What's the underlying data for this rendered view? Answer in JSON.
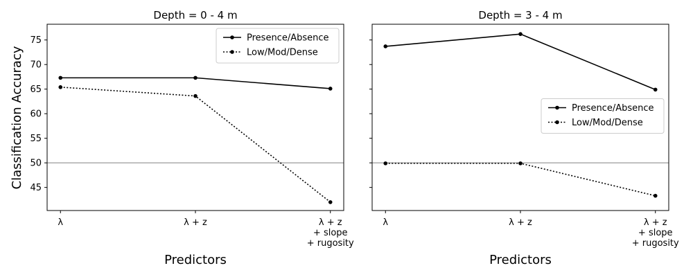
{
  "figure": {
    "ylabel": "Classification Accuracy"
  },
  "chart_data": [
    {
      "type": "line",
      "title": "Depth = 0 - 4 m",
      "xlabel": "Predictors",
      "ylabel": "Classification Accuracy",
      "categories": [
        "λ",
        "λ + z",
        "λ + z\n+ slope\n+ rugosity"
      ],
      "ylim": [
        40.3,
        78.2
      ],
      "yticks": [
        45,
        50,
        55,
        60,
        65,
        70,
        75
      ],
      "reference_line": 50,
      "legend": "top-right",
      "series": [
        {
          "name": "Presence/Absence",
          "style": "solid",
          "values": [
            67.3,
            67.3,
            65.1
          ]
        },
        {
          "name": "Low/Mod/Dense",
          "style": "dotted",
          "values": [
            65.4,
            63.6,
            42.0
          ]
        }
      ]
    },
    {
      "type": "line",
      "title": "Depth = 3 - 4 m",
      "xlabel": "Predictors",
      "ylabel": "",
      "categories": [
        "λ",
        "λ + z",
        "λ + z\n+ slope\n+ rugosity"
      ],
      "ylim": [
        40.3,
        78.2
      ],
      "yticks": [
        45,
        50,
        55,
        60,
        65,
        70,
        75
      ],
      "reference_line": 50,
      "legend": "center-right",
      "series": [
        {
          "name": "Presence/Absence",
          "style": "solid",
          "values": [
            73.7,
            76.2,
            64.9
          ]
        },
        {
          "name": "Low/Mod/Dense",
          "style": "dotted",
          "values": [
            49.9,
            49.9,
            43.3
          ]
        }
      ]
    }
  ]
}
